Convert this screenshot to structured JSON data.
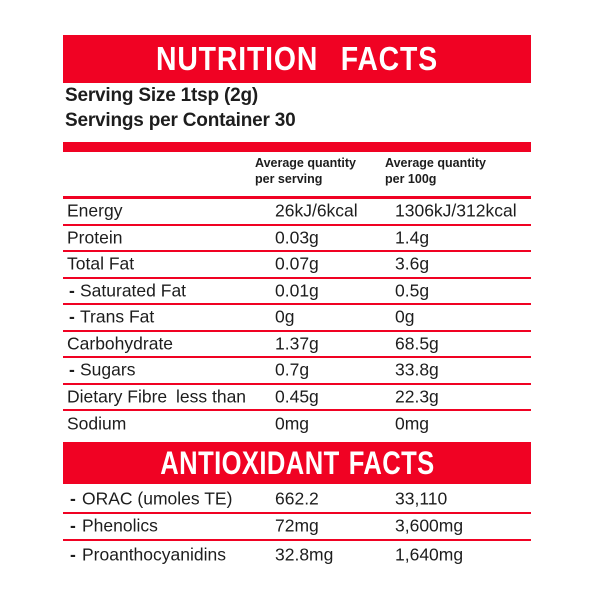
{
  "theme": {
    "accent_red": "#F00223",
    "text_color": "#1d1d1d",
    "background": "#ffffff",
    "banner_text_color": "#ffffff"
  },
  "nutrition_header": {
    "title": "NUTRITION FACTS"
  },
  "serving_info": {
    "serving_size": "Serving Size 1tsp (2g)",
    "servings_per_container": "Servings per Container 30"
  },
  "column_headers": {
    "per_serving": {
      "line1": "Average quantity",
      "line2": "per serving"
    },
    "per_100g": {
      "line1": "Average quantity",
      "line2": "per 100g"
    }
  },
  "nutrition_rows": [
    {
      "dash": "",
      "label": "Energy",
      "qualifier": "",
      "per_serving": "26kJ/6kcal",
      "per_100g": "1306kJ/312kcal"
    },
    {
      "dash": "",
      "label": "Protein",
      "qualifier": "",
      "per_serving": "0.03g",
      "per_100g": "1.4g"
    },
    {
      "dash": "",
      "label": "Total Fat",
      "qualifier": "",
      "per_serving": "0.07g",
      "per_100g": "3.6g"
    },
    {
      "dash": "-",
      "label": "Saturated Fat",
      "qualifier": "",
      "per_serving": "0.01g",
      "per_100g": "0.5g"
    },
    {
      "dash": "-",
      "label": "Trans Fat",
      "qualifier": "",
      "per_serving": "0g",
      "per_100g": "0g"
    },
    {
      "dash": "",
      "label": "Carbohydrate",
      "qualifier": "",
      "per_serving": "1.37g",
      "per_100g": "68.5g"
    },
    {
      "dash": "-",
      "label": "Sugars",
      "qualifier": "",
      "per_serving": "0.7g",
      "per_100g": "33.8g"
    },
    {
      "dash": "",
      "label": "Dietary Fibre",
      "qualifier": "less than",
      "per_serving": "0.45g",
      "per_100g": "22.3g"
    },
    {
      "dash": "",
      "label": "Sodium",
      "qualifier": "",
      "per_serving": "0mg",
      "per_100g": "0mg"
    }
  ],
  "antioxidant_header": {
    "title": "ANTIOXIDANT FACTS"
  },
  "antioxidant_rows": [
    {
      "dash": "-",
      "label": "ORAC (umoles TE)",
      "per_serving": "662.2",
      "per_100g": "33,110"
    },
    {
      "dash": "-",
      "label": "Phenolics",
      "per_serving": "72mg",
      "per_100g": "3,600mg"
    },
    {
      "dash": "-",
      "label": "Proanthocyanidins",
      "per_serving": "32.8mg",
      "per_100g": "1,640mg"
    }
  ]
}
